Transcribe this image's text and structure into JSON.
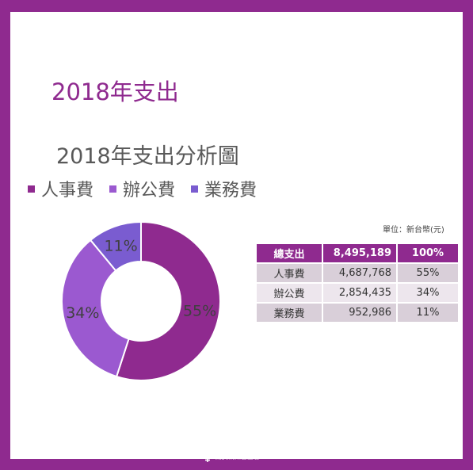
{
  "page": {
    "title": "2018年支出"
  },
  "chart_data": {
    "type": "pie",
    "title": "2018年支出分析圖",
    "categories": [
      "人事費",
      "辦公費",
      "業務費"
    ],
    "values": [
      55,
      34,
      11
    ],
    "data_labels": [
      "55%",
      "34%",
      "11%"
    ],
    "colors": [
      "#8f2a8f",
      "#9b59d0",
      "#7a5cd0"
    ],
    "legend_position": "top"
  },
  "table": {
    "unit_note": "單位：新台幣(元)",
    "header": {
      "name": "總支出",
      "amount": "8,495,189",
      "pct": "100%"
    },
    "rows": [
      {
        "name": "人事費",
        "amount": "4,687,768",
        "pct": "55%"
      },
      {
        "name": "辦公費",
        "amount": "2,854,435",
        "pct": "34%"
      },
      {
        "name": "業務費",
        "amount": "952,986",
        "pct": "11%"
      }
    ]
  },
  "footer": {
    "org_name": "婦女新知基金會",
    "logo_icon": "female-symbol-icon"
  }
}
